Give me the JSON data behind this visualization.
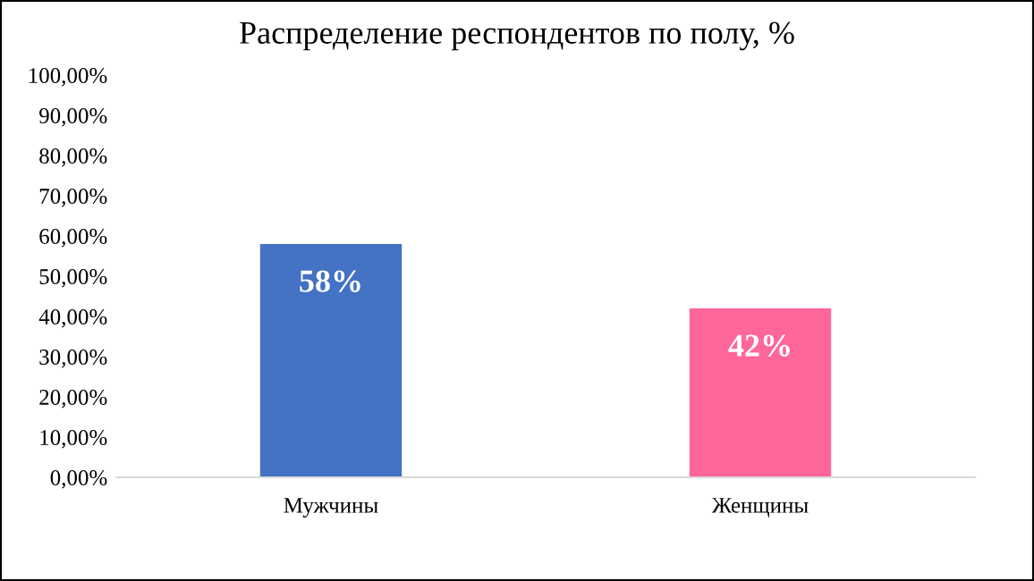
{
  "chart_data": {
    "type": "bar",
    "title": "Распределение респондентов по полу, %",
    "categories": [
      "Мужчины",
      "Женщины"
    ],
    "values": [
      58,
      42
    ],
    "colors": [
      "#4472c4",
      "#ff6699"
    ],
    "value_labels": [
      "58%",
      "42%"
    ],
    "ylim": [
      0,
      100
    ],
    "yticks": [
      {
        "value": 0,
        "label": "0,00%"
      },
      {
        "value": 10,
        "label": "10,00%"
      },
      {
        "value": 20,
        "label": "20,00%"
      },
      {
        "value": 30,
        "label": "30,00%"
      },
      {
        "value": 40,
        "label": "40,00%"
      },
      {
        "value": 50,
        "label": "50,00%"
      },
      {
        "value": 60,
        "label": "60,00%"
      },
      {
        "value": 70,
        "label": "70,00%"
      },
      {
        "value": 80,
        "label": "80,00%"
      },
      {
        "value": 90,
        "label": "90,00%"
      },
      {
        "value": 100,
        "label": "100,00%"
      }
    ],
    "grid": false,
    "legend": false
  }
}
